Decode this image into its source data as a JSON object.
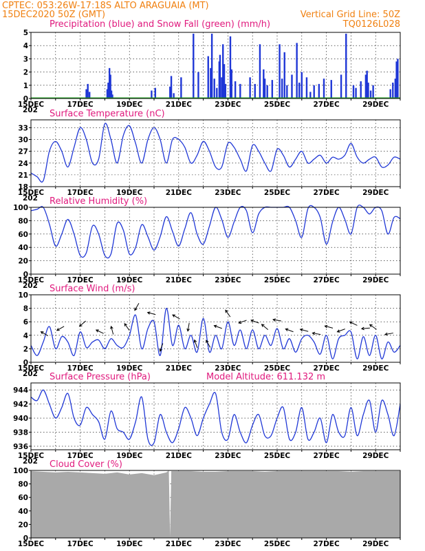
{
  "header": {
    "line1": "CPTEC:   053:26W-17:18S   ALTO ARAGUAIA (MT)",
    "line2_left": "15DEC2020 50Z (GMT)",
    "line2_right": "Vertical Grid Line: 50Z",
    "line3_right": "TQ0126L028"
  },
  "x_tick_labels": [
    "15DEC",
    "17DEC",
    "19DEC",
    "21DEC",
    "23DEC",
    "25DEC",
    "27DEC",
    "29DEC"
  ],
  "year_fragment": "202",
  "colors": {
    "title": "#e0197d",
    "header": "#f08010",
    "series": "#1f37d6",
    "snow": "#22aa22",
    "cloud": "#a9a9a9"
  },
  "chart_data": [
    {
      "type": "bar",
      "title": "Precipitation (blue) and Snow Fall (green) (mm/h)",
      "ylim": [
        0,
        5
      ],
      "yticks": [
        0,
        1,
        2,
        3,
        4,
        5
      ],
      "series": [
        {
          "name": "Precipitation",
          "x": [
            2.25,
            2.31,
            2.38,
            3.1,
            3.14,
            3.19,
            3.23,
            3.27,
            3.31,
            4.9,
            5.05,
            5.65,
            5.7,
            5.8,
            6.1,
            6.6,
            6.8,
            7.2,
            7.3,
            7.35,
            7.45,
            7.55,
            7.65,
            7.68,
            7.75,
            7.8,
            7.85,
            7.9,
            8.1,
            8.15,
            8.3,
            8.5,
            8.9,
            9.1,
            9.3,
            9.45,
            9.5,
            9.6,
            9.8,
            10.1,
            10.2,
            10.3,
            10.4,
            10.6,
            10.8,
            10.9,
            11,
            11.2,
            11.35,
            11.5,
            11.7,
            11.9,
            12.2,
            12.6,
            12.8,
            13.1,
            13.2,
            13.4,
            13.6,
            13.65,
            13.7,
            13.8,
            13.9,
            14.6,
            14.7,
            14.8,
            14.85,
            14.9
          ],
          "values": [
            0.7,
            1.1,
            0.5,
            0.7,
            1.2,
            2.3,
            1.8,
            0.6,
            0.3,
            0.6,
            0.8,
            0.9,
            1.7,
            0.4,
            1.6,
            4.9,
            2,
            3.2,
            2.3,
            4.9,
            1.5,
            0.8,
            2.8,
            3.3,
            1.6,
            4.1,
            2.6,
            1.1,
            4.7,
            2.2,
            1.3,
            1.1,
            1.6,
            1.1,
            4.1,
            2.2,
            1.5,
            1,
            1.4,
            4.1,
            1.5,
            3.5,
            1,
            1.8,
            4.2,
            1.2,
            2,
            1.6,
            0.5,
            1,
            1.1,
            1.5,
            1.4,
            1.8,
            4.9,
            1,
            0.8,
            1.3,
            1.8,
            2.1,
            1.2,
            0.6,
            1,
            0.7,
            1.2,
            1.5,
            2.8,
            3
          ]
        },
        {
          "name": "Snow Fall",
          "x": [
            0,
            15
          ],
          "values": [
            0,
            0
          ]
        }
      ]
    },
    {
      "type": "line",
      "title": "Surface Temperature (nC)",
      "ylim": [
        18,
        35
      ],
      "yticks": [
        18,
        21,
        24,
        27,
        30,
        33
      ],
      "x": [
        0,
        0.25,
        0.5,
        0.75,
        1,
        1.25,
        1.5,
        1.75,
        2,
        2.25,
        2.5,
        2.75,
        3,
        3.25,
        3.5,
        3.75,
        4,
        4.25,
        4.5,
        4.75,
        5,
        5.25,
        5.5,
        5.75,
        6,
        6.25,
        6.5,
        6.75,
        7,
        7.25,
        7.5,
        7.75,
        8,
        8.25,
        8.5,
        8.75,
        9,
        9.25,
        9.5,
        9.75,
        10,
        10.25,
        10.5,
        10.75,
        11,
        11.25,
        11.5,
        11.75,
        12,
        12.25,
        12.5,
        12.75,
        13,
        13.25,
        13.5,
        13.75,
        14,
        14.25,
        14.5,
        14.75,
        15
      ],
      "values": [
        21.5,
        20.5,
        19.5,
        27,
        29.5,
        27,
        23,
        28,
        33,
        30,
        24,
        25,
        34,
        30,
        24,
        31,
        33.5,
        29,
        24,
        30,
        33,
        30,
        24,
        30,
        30,
        28,
        24,
        26,
        29.5,
        27,
        23,
        23,
        29,
        28,
        25,
        22,
        28.5,
        27,
        24,
        22,
        27.5,
        26,
        23,
        25,
        27,
        24,
        25,
        26,
        24,
        25.5,
        25,
        26,
        29,
        25.5,
        24,
        25,
        25.5,
        23,
        23.5,
        25.5,
        25
      ]
    },
    {
      "type": "line",
      "title": "Relative Humidity (%)",
      "ylim": [
        0,
        100
      ],
      "yticks": [
        0,
        20,
        40,
        60,
        80,
        100
      ],
      "x": [
        0,
        0.25,
        0.5,
        0.75,
        1,
        1.25,
        1.5,
        1.75,
        2,
        2.25,
        2.5,
        2.75,
        3,
        3.25,
        3.5,
        3.75,
        4,
        4.25,
        4.5,
        4.75,
        5,
        5.25,
        5.5,
        5.75,
        6,
        6.25,
        6.5,
        6.75,
        7,
        7.25,
        7.5,
        7.75,
        8,
        8.25,
        8.5,
        8.75,
        9,
        9.25,
        9.5,
        9.75,
        10,
        10.25,
        10.5,
        10.75,
        11,
        11.25,
        11.5,
        11.75,
        12,
        12.25,
        12.5,
        12.75,
        13,
        13.25,
        13.5,
        13.75,
        14,
        14.25,
        14.5,
        14.75,
        15
      ],
      "values": [
        95,
        97,
        100,
        75,
        42,
        60,
        82,
        60,
        28,
        32,
        72,
        60,
        28,
        30,
        76,
        66,
        30,
        40,
        74,
        56,
        36,
        56,
        86,
        64,
        42,
        68,
        92,
        60,
        45,
        72,
        100,
        82,
        55,
        78,
        100,
        95,
        62,
        90,
        100,
        100,
        100,
        100,
        100,
        80,
        55,
        98,
        100,
        85,
        45,
        78,
        100,
        82,
        60,
        100,
        100,
        90,
        100,
        95,
        60,
        85,
        83
      ]
    },
    {
      "type": "line",
      "title": "Surface Wind (m/s)",
      "ylim": [
        0,
        10
      ],
      "yticks": [
        0,
        2,
        4,
        6,
        8,
        10
      ],
      "x": [
        0,
        0.25,
        0.5,
        0.75,
        1,
        1.25,
        1.5,
        1.75,
        2,
        2.25,
        2.5,
        2.75,
        3,
        3.25,
        3.5,
        3.75,
        4,
        4.25,
        4.5,
        4.75,
        5,
        5.25,
        5.5,
        5.75,
        6,
        6.25,
        6.5,
        6.75,
        7,
        7.25,
        7.5,
        7.75,
        8,
        8.25,
        8.5,
        8.75,
        9,
        9.25,
        9.5,
        9.75,
        10,
        10.25,
        10.5,
        10.75,
        11,
        11.25,
        11.5,
        11.75,
        12,
        12.25,
        12.5,
        12.75,
        13,
        13.25,
        13.5,
        13.75,
        14,
        14.25,
        14.5,
        14.75,
        15
      ],
      "values": [
        2.5,
        1,
        3,
        5.3,
        2,
        3.8,
        3,
        1,
        4.5,
        2.2,
        3,
        3.3,
        2,
        3.5,
        2.5,
        2.2,
        4,
        7,
        2,
        5,
        6,
        1,
        8,
        2.5,
        5.5,
        2,
        4,
        1.5,
        6.5,
        1.5,
        4,
        2,
        6,
        2.5,
        4.8,
        2,
        4.8,
        2,
        4,
        2.5,
        5,
        2,
        3.5,
        1.5,
        3.5,
        4,
        3,
        1.2,
        4,
        0.5,
        3.5,
        4,
        4.5,
        0.5,
        3.8,
        1,
        4,
        0.5,
        3,
        1.5,
        2.5
      ],
      "arrows": [
        {
          "x": 0.55,
          "dir": 210
        },
        {
          "x": 1.2,
          "dir": 150
        },
        {
          "x": 2.1,
          "dir": 140
        },
        {
          "x": 2.8,
          "dir": 205
        },
        {
          "x": 3.3,
          "dir": 255
        },
        {
          "x": 3.9,
          "dir": 235
        },
        {
          "x": 4.3,
          "dir": 120
        },
        {
          "x": 4.9,
          "dir": 195
        },
        {
          "x": 5.3,
          "dir": 110
        },
        {
          "x": 5.9,
          "dir": 210
        },
        {
          "x": 6.4,
          "dir": 100
        },
        {
          "x": 6.7,
          "dir": 250
        },
        {
          "x": 7.2,
          "dir": 240
        },
        {
          "x": 7.6,
          "dir": 200
        },
        {
          "x": 8.0,
          "dir": 235
        },
        {
          "x": 8.6,
          "dir": 160
        },
        {
          "x": 9.1,
          "dir": 200
        },
        {
          "x": 9.5,
          "dir": 220
        },
        {
          "x": 10.0,
          "dir": 190
        },
        {
          "x": 10.5,
          "dir": 200
        },
        {
          "x": 11.1,
          "dir": 195
        },
        {
          "x": 11.6,
          "dir": 190
        },
        {
          "x": 12.1,
          "dir": 195
        },
        {
          "x": 12.6,
          "dir": 160
        },
        {
          "x": 13.1,
          "dir": 205
        },
        {
          "x": 13.6,
          "dir": 175
        },
        {
          "x": 13.9,
          "dir": 215
        },
        {
          "x": 14.55,
          "dir": 170
        }
      ]
    },
    {
      "type": "line",
      "title": "Surface Pressure (hPa)",
      "annotation": "Model Altitude: 611.132 m",
      "ylim": [
        935.5,
        945
      ],
      "yticks": [
        936,
        938,
        940,
        942,
        944
      ],
      "x": [
        0,
        0.25,
        0.5,
        0.75,
        1,
        1.25,
        1.5,
        1.75,
        2,
        2.25,
        2.5,
        2.75,
        3,
        3.25,
        3.5,
        3.75,
        4,
        4.25,
        4.5,
        4.75,
        5,
        5.25,
        5.5,
        5.75,
        6,
        6.25,
        6.5,
        6.75,
        7,
        7.25,
        7.5,
        7.75,
        8,
        8.25,
        8.5,
        8.75,
        9,
        9.25,
        9.5,
        9.75,
        10,
        10.25,
        10.5,
        10.75,
        11,
        11.25,
        11.5,
        11.75,
        12,
        12.25,
        12.5,
        12.75,
        13,
        13.25,
        13.5,
        13.75,
        14,
        14.25,
        14.5,
        14.75,
        15
      ],
      "values": [
        943,
        942.5,
        944,
        942,
        940,
        941.5,
        943.5,
        940,
        939,
        941.5,
        940.5,
        939.5,
        937,
        941,
        938.5,
        938,
        937,
        939.5,
        943,
        937,
        936.5,
        940.5,
        938,
        936.5,
        938.5,
        941.5,
        940,
        937.5,
        940,
        942,
        943.5,
        938,
        937,
        940.5,
        938,
        936.5,
        939,
        940.5,
        937.5,
        937.5,
        940,
        941.5,
        937,
        938,
        941.5,
        937,
        938,
        940,
        936.5,
        940.5,
        938,
        937.5,
        941.5,
        937.5,
        940.5,
        942.5,
        938,
        942.5,
        940.5,
        937.5,
        942
      ]
    },
    {
      "type": "area",
      "title": "Cloud Cover (%)",
      "ylim": [
        0,
        100
      ],
      "yticks": [
        0,
        20,
        40,
        60,
        80,
        100
      ],
      "x": [
        0,
        0.5,
        1,
        1.5,
        2,
        2.5,
        3,
        3.5,
        4,
        4.5,
        5,
        5.5,
        5.6,
        5.65,
        5.7,
        6,
        6.5,
        7,
        7.5,
        8,
        8.5,
        9,
        9.5,
        10,
        10.5,
        11,
        11.5,
        12,
        12.5,
        13,
        13.5,
        14,
        14.5,
        15
      ],
      "values": [
        99,
        98,
        97,
        98,
        97,
        96,
        95,
        97,
        94,
        96,
        93,
        97,
        100,
        2,
        99,
        99,
        99,
        98,
        98,
        99,
        99,
        99,
        98,
        99,
        99,
        99,
        99,
        99,
        99,
        98,
        99,
        99,
        99,
        99
      ]
    }
  ]
}
